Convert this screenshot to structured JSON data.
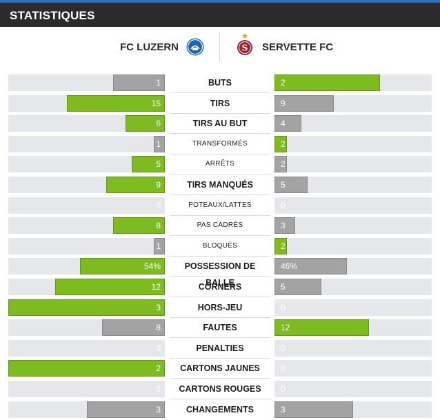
{
  "header": {
    "title": "STATISTIQUES"
  },
  "teams": {
    "home": "FC LUZERN",
    "away": "SERVETTE FC",
    "away_logo_letter": "S"
  },
  "colors": {
    "header_bg": "#2b2b2b",
    "winner_bar": "#7dbb21",
    "loser_bar": "#a3a3a3",
    "track": "#e5e7ea"
  },
  "stats": [
    {
      "label": "BUTS",
      "kind": "main",
      "home": "1",
      "away": "2",
      "home_frac": 0.33,
      "away_frac": 0.67,
      "home_win": false,
      "away_win": true
    },
    {
      "label": "TIRS",
      "kind": "main",
      "home": "15",
      "away": "9",
      "home_frac": 0.625,
      "away_frac": 0.375,
      "home_win": true,
      "away_win": false
    },
    {
      "label": "TIRS AU BUT",
      "kind": "main",
      "home": "6",
      "away": "4",
      "home_frac": 0.25,
      "away_frac": 0.17,
      "home_win": true,
      "away_win": false
    },
    {
      "label": "TRANSFORMÉS",
      "kind": "sub",
      "home": "1",
      "away": "2",
      "home_frac": 0.07,
      "away_frac": 0.08,
      "home_win": false,
      "away_win": true
    },
    {
      "label": "ARRÊTS",
      "kind": "sub",
      "home": "5",
      "away": "2",
      "home_frac": 0.21,
      "away_frac": 0.08,
      "home_win": true,
      "away_win": false
    },
    {
      "label": "TIRS MANQUÉS",
      "kind": "main",
      "home": "9",
      "away": "5",
      "home_frac": 0.375,
      "away_frac": 0.21,
      "home_win": true,
      "away_win": false
    },
    {
      "label": "POTEAUX/LATTES",
      "kind": "sub",
      "home": "0",
      "away": "0",
      "home_frac": 0,
      "away_frac": 0,
      "home_win": false,
      "away_win": false
    },
    {
      "label": "PAS CADRÉS",
      "kind": "sub",
      "home": "8",
      "away": "3",
      "home_frac": 0.33,
      "away_frac": 0.13,
      "home_win": true,
      "away_win": false
    },
    {
      "label": "BLOQUÉS",
      "kind": "sub",
      "home": "1",
      "away": "2",
      "home_frac": 0.07,
      "away_frac": 0.08,
      "home_win": false,
      "away_win": true
    },
    {
      "label": "POSSESSION DE BALLE",
      "kind": "main",
      "home": "54%",
      "away": "46%",
      "home_frac": 0.54,
      "away_frac": 0.46,
      "home_win": true,
      "away_win": false
    },
    {
      "label": "CORNERS",
      "kind": "main",
      "home": "12",
      "away": "5",
      "home_frac": 0.7,
      "away_frac": 0.3,
      "home_win": true,
      "away_win": false
    },
    {
      "label": "HORS-JEU",
      "kind": "main",
      "home": "3",
      "away": "0",
      "home_frac": 1.0,
      "away_frac": 0,
      "home_win": true,
      "away_win": false
    },
    {
      "label": "FAUTES",
      "kind": "main",
      "home": "8",
      "away": "12",
      "home_frac": 0.4,
      "away_frac": 0.6,
      "home_win": false,
      "away_win": true
    },
    {
      "label": "PENALTIES",
      "kind": "main",
      "home": "0",
      "away": "0",
      "home_frac": 0,
      "away_frac": 0,
      "home_win": false,
      "away_win": false
    },
    {
      "label": "CARTONS JAUNES",
      "kind": "main",
      "home": "2",
      "away": "0",
      "home_frac": 1.0,
      "away_frac": 0,
      "home_win": true,
      "away_win": false
    },
    {
      "label": "CARTONS ROUGES",
      "kind": "main",
      "home": "0",
      "away": "0",
      "home_frac": 0,
      "away_frac": 0,
      "home_win": false,
      "away_win": false
    },
    {
      "label": "CHANGEMENTS",
      "kind": "main",
      "home": "3",
      "away": "3",
      "home_frac": 0.5,
      "away_frac": 0.5,
      "home_win": false,
      "away_win": false
    }
  ]
}
